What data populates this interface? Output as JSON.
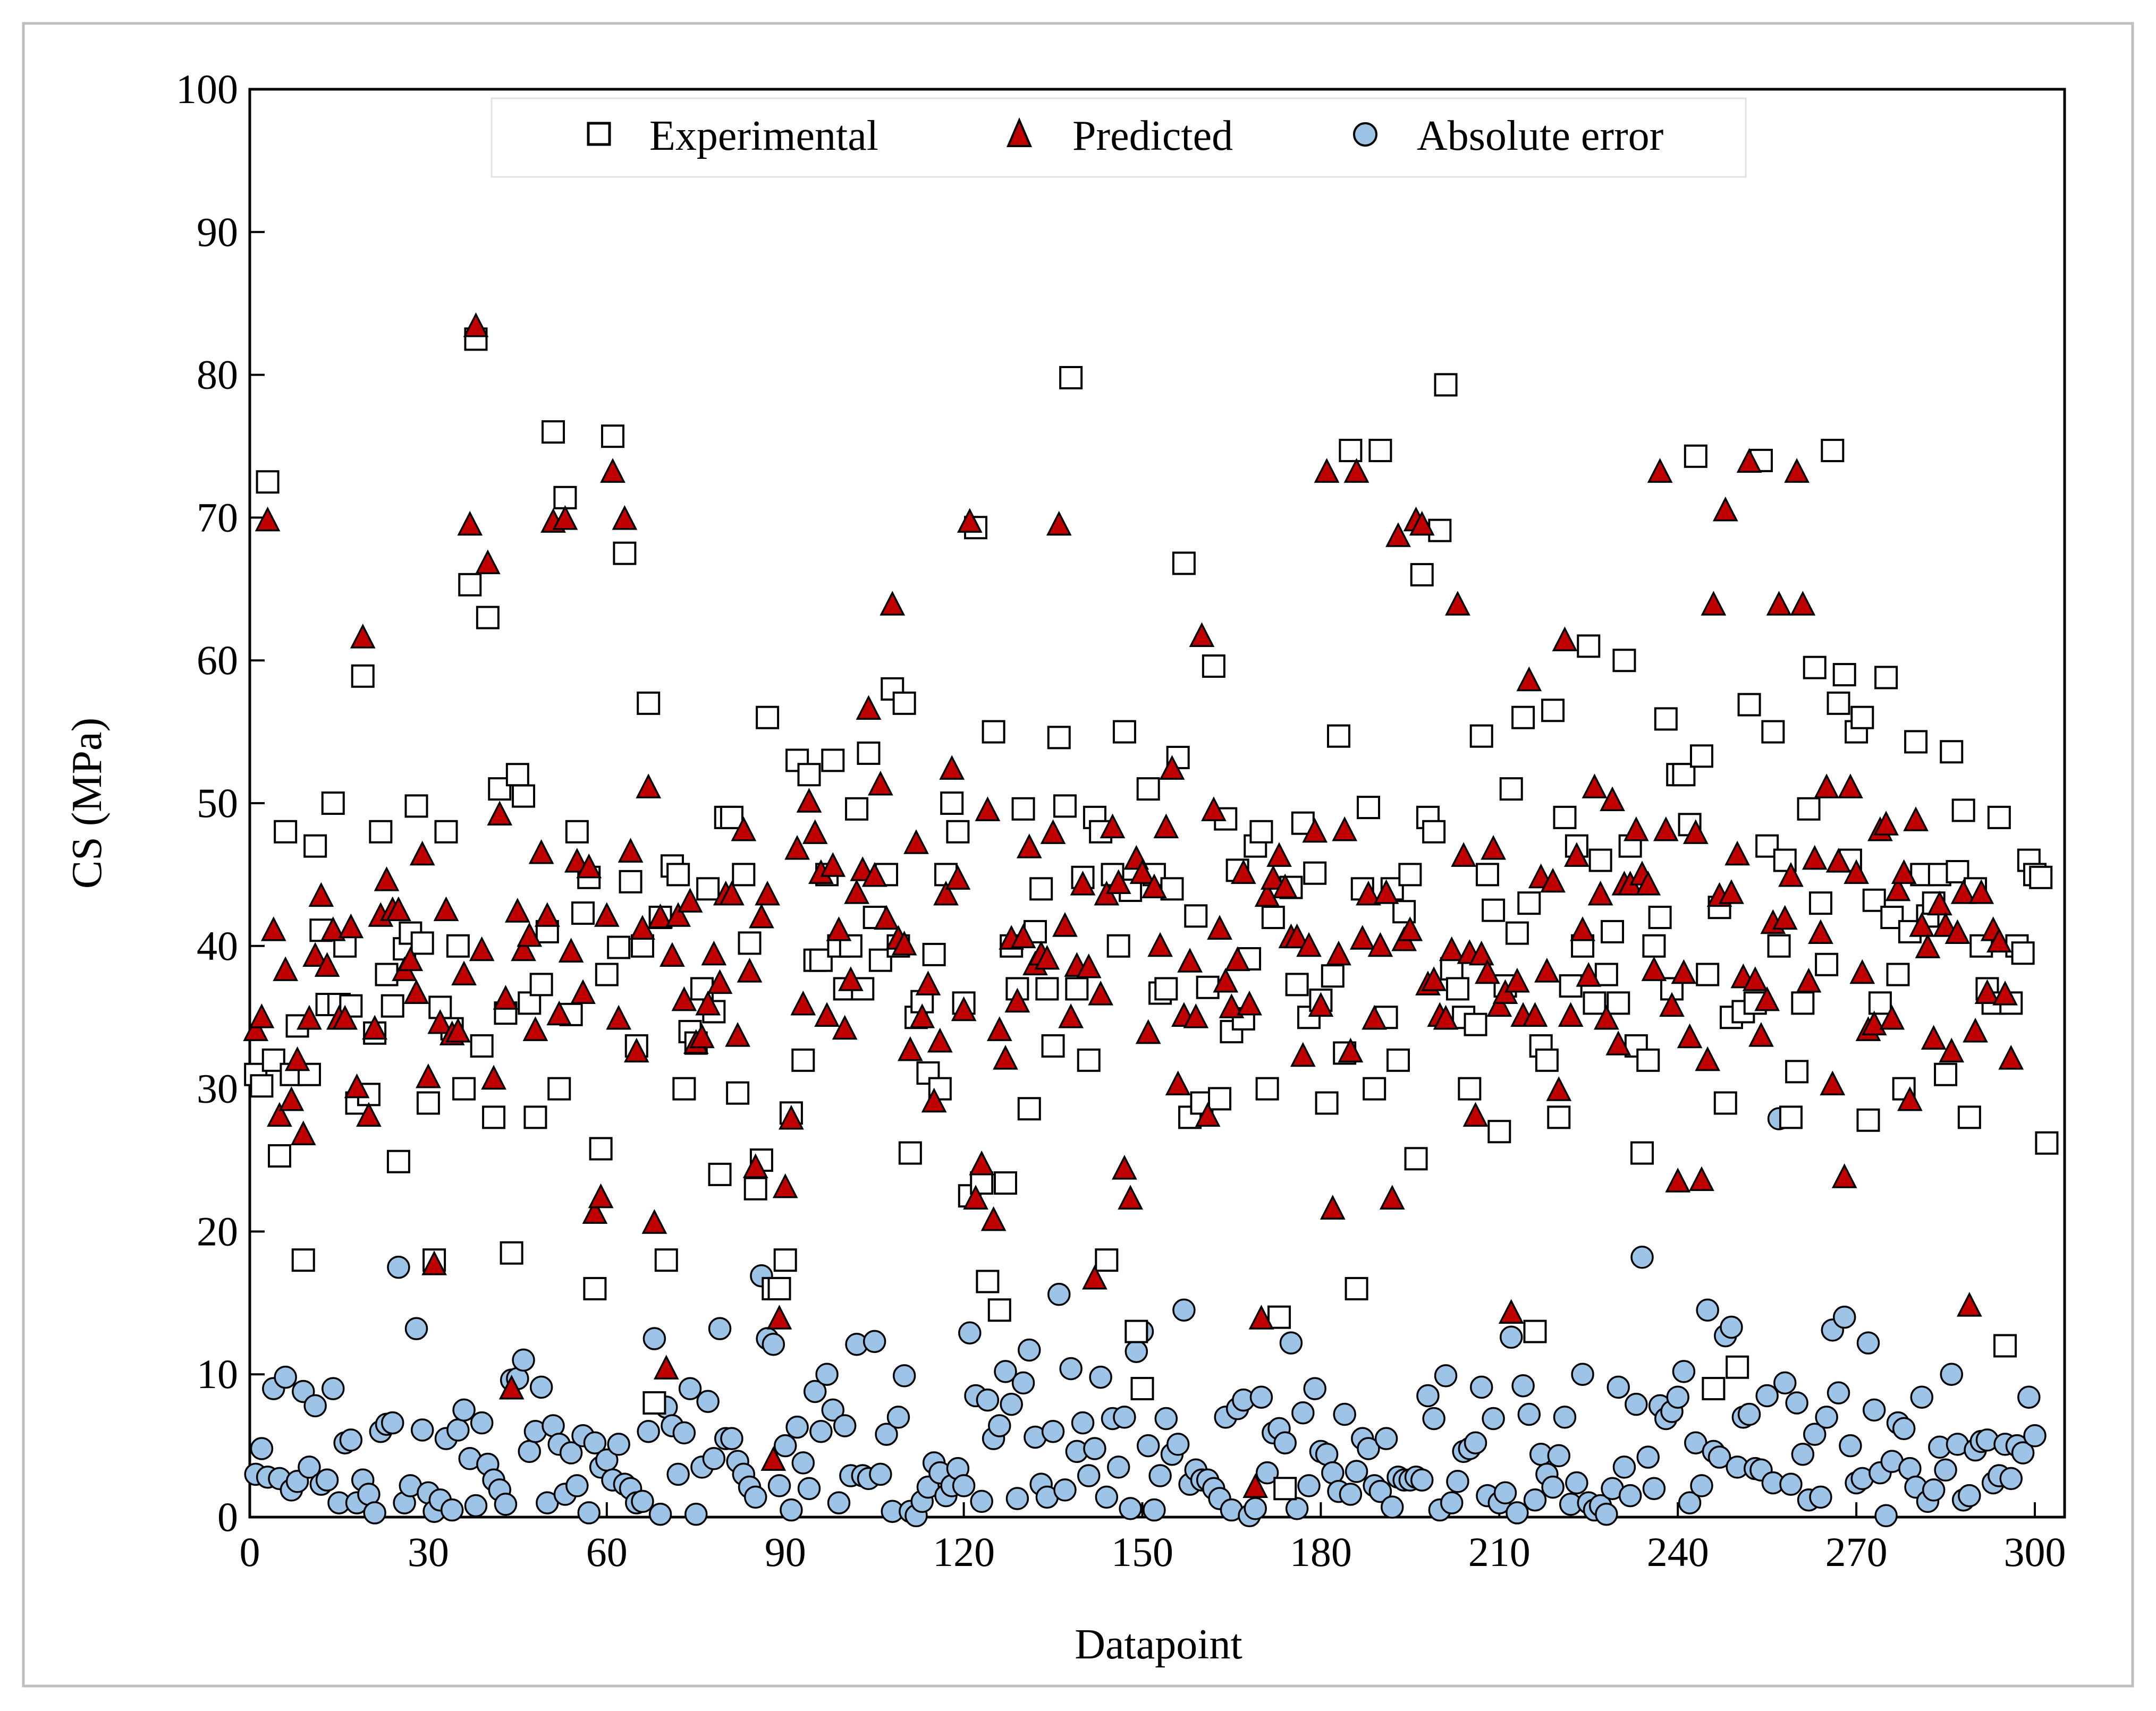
{
  "chart_data": {
    "type": "scatter",
    "title": "",
    "xlabel": "Datapoint",
    "ylabel": "CS (MPa)",
    "xlim": [
      0,
      305
    ],
    "ylim": [
      0,
      100
    ],
    "x_ticks": [
      "0",
      "30",
      "60",
      "90",
      "120",
      "150",
      "180",
      "210",
      "240",
      "270",
      "300"
    ],
    "y_ticks": [
      "0",
      "10",
      "20",
      "30",
      "40",
      "50",
      "60",
      "70",
      "80",
      "90",
      "100"
    ],
    "grid": false,
    "legend": {
      "position": "top-center",
      "entries": [
        "Experimental",
        "Predicted",
        "Absolute error"
      ]
    },
    "series": [
      {
        "name": "Experimental",
        "marker": "open-square",
        "color": "#ffffff",
        "edge_color": "#000000",
        "values": [
          31.0,
          30.2,
          72.5,
          32.0,
          25.3,
          48.0,
          31.0,
          34.4,
          18.0,
          31.0,
          47.0,
          41.1,
          35.9,
          50.0,
          35.9,
          40.0,
          35.8,
          29.0,
          58.9,
          29.6,
          33.9,
          48.0,
          38.0,
          35.8,
          24.9,
          39.8,
          40.9,
          49.8,
          40.2,
          29.0,
          18.0,
          35.7,
          48.0,
          34.2,
          40.0,
          30.0,
          65.3,
          82.5,
          33.0,
          63.0,
          28.0,
          51.0,
          35.3,
          18.5,
          52.0,
          50.5,
          36.0,
          28.0,
          37.3,
          41.0,
          76.0,
          30.0,
          71.4,
          35.2,
          48.0,
          42.3,
          44.8,
          16.0,
          25.8,
          38.0,
          75.7,
          39.9,
          67.5,
          44.5,
          33.0,
          40.0,
          57.0,
          8.0,
          42.0,
          18.0,
          45.6,
          45.0,
          30.0,
          34.0,
          33.2,
          37.0,
          44.0,
          35.4,
          24.0,
          49.0,
          49.0,
          29.7,
          45.0,
          40.2,
          23.0,
          25.0,
          56.0,
          16.0,
          16.0,
          18.0,
          28.3,
          53.0,
          32.0,
          52.0,
          39.0,
          39.0,
          45.0,
          53.0,
          40.0,
          37.0,
          40.0,
          49.6,
          37.0,
          53.5,
          42.0,
          39.0,
          45.0,
          58.0,
          40.0,
          57.0,
          25.5,
          35.0,
          36.1,
          31.1,
          39.4,
          30.0,
          45.0,
          50.0,
          48.0,
          36.0,
          22.5,
          69.3,
          23.4,
          16.5,
          55.0,
          14.5,
          23.4,
          40.0,
          37.0,
          49.6,
          28.6,
          41.0,
          44.0,
          37.0,
          33.0,
          54.6,
          49.8,
          79.8,
          37.0,
          44.8,
          32.0,
          49.0,
          48.0,
          18.0,
          45.0,
          40.0,
          55.0,
          43.9,
          13.0,
          9.0,
          51.0,
          45.0,
          36.7,
          37.0,
          44.0,
          53.2,
          66.8,
          28.0,
          42.1,
          29.0,
          37.1,
          59.6,
          29.3,
          48.9,
          34.0,
          45.3,
          34.9,
          39.1,
          47.0,
          48.0,
          30.0,
          42.0,
          14.0,
          2.0,
          44.1,
          37.3,
          48.6,
          35.0,
          45.1,
          36.2,
          29.0,
          37.9,
          54.7,
          32.5,
          74.7,
          16.0,
          44.0,
          49.7,
          30.0,
          74.7,
          35.0,
          44.0,
          32.0,
          42.4,
          45.0,
          25.1,
          66.0,
          49.0,
          48.0,
          69.1,
          79.3,
          38.4,
          37.0,
          35.0,
          30.0,
          34.5,
          54.7,
          45.0,
          42.5,
          27.0,
          37.2,
          51.0,
          40.9,
          56.0,
          43.0,
          13.0,
          33.0,
          32.0,
          56.5,
          28.0,
          49.0,
          37.2,
          47.0,
          40.0,
          61.0,
          36.0,
          46.0,
          38.0,
          41.0,
          36.0,
          60.0,
          47.0,
          33.0,
          25.5,
          32.0,
          40.0,
          42.0,
          55.9,
          37.0,
          52.0,
          52.0,
          48.5,
          74.3,
          53.3,
          38.0,
          9.0,
          42.7,
          29.0,
          35.0,
          10.5,
          35.4,
          56.9,
          36.0,
          74.0,
          47.0,
          55.0,
          40.0,
          46.0,
          28.0,
          31.2,
          36.0,
          49.6,
          59.5,
          43.0,
          38.7,
          74.7,
          57.0,
          59.0,
          46.0,
          55.0,
          56.0,
          27.8,
          43.2,
          36.0,
          58.8,
          42.0,
          38.0,
          30.0,
          41.0,
          54.3,
          45.0,
          42.1,
          43.0,
          45.0,
          31.0,
          53.6,
          45.2,
          49.5,
          28.0,
          44.0,
          40.0,
          37.0,
          36.0,
          49.0,
          12.0,
          36.0,
          40.0,
          39.5,
          46.0,
          45.0,
          44.8,
          26.2
        ]
      },
      {
        "name": "Predicted",
        "marker": "triangle",
        "color": "#c00000",
        "edge_color": "#000000",
        "values": [
          34.0,
          34.9,
          69.7,
          41.0,
          28.0,
          38.2,
          29.1,
          31.9,
          26.7,
          34.8,
          39.2,
          43.4,
          38.5,
          41.0,
          34.8,
          34.8,
          41.2,
          30.0,
          61.5,
          28.0,
          34.1,
          42.0,
          44.5,
          42.4,
          42.4,
          38.2,
          38.9,
          36.6,
          46.3,
          30.7,
          17.6,
          34.5,
          42.4,
          33.7,
          33.9,
          37.9,
          69.4,
          83.3,
          39.6,
          66.7,
          30.6,
          49.1,
          36.2,
          8.9,
          42.3,
          39.6,
          40.6,
          34.0,
          46.4,
          42.0,
          69.6,
          35.1,
          69.8,
          39.5,
          45.8,
          36.6,
          45.4,
          21.2,
          22.3,
          42.0,
          73.1,
          34.8,
          69.8,
          46.5,
          32.5,
          41.1,
          51.0,
          20.5,
          41.9,
          10.3,
          39.2,
          42.0,
          36.1,
          43.0,
          33.1,
          33.5,
          35.8,
          39.3,
          37.3,
          43.5,
          43.5,
          33.6,
          48.0,
          38.1,
          24.4,
          41.9,
          43.5,
          3.9,
          13.8,
          23.0,
          27.8,
          46.7,
          35.8,
          50.0,
          47.8,
          45.0,
          35.0,
          45.5,
          41.0,
          34.1,
          37.5,
          43.6,
          45.2,
          56.5,
          44.8,
          51.2,
          41.8,
          63.8,
          40.4,
          40.0,
          32.6,
          47.1,
          34.9,
          37.2,
          29.0,
          33.2,
          43.5,
          52.3,
          44.6,
          35.4,
          69.6,
          22.2,
          24.6,
          49.4,
          20.7,
          34.0,
          32.0,
          40.4,
          36.0,
          40.5,
          46.8,
          38.6,
          39.3,
          39.0,
          47.8,
          69.4,
          41.3,
          34.9,
          38.5,
          44.2,
          38.4,
          16.6,
          36.5,
          43.5,
          48.2,
          44.3,
          24.3,
          22.2,
          46.0,
          45.0,
          33.8,
          44.0,
          39.9,
          48.2,
          52.3,
          30.2,
          35.0,
          38.8,
          34.9,
          61.6,
          28.0,
          49.4,
          41.1,
          37.4,
          35.6,
          38.9,
          45.0,
          35.8,
          2.0,
          13.8,
          43.4,
          44.6,
          46.2,
          44.0,
          40.5,
          40.5,
          32.2,
          39.9,
          47.9,
          35.7,
          73.1,
          21.5,
          39.3,
          48.0,
          32.5,
          73.1,
          40.4,
          43.5,
          34.8,
          39.9,
          43.6,
          22.2,
          68.6,
          40.3,
          41.0,
          69.7,
          69.4,
          37.2,
          37.5,
          35.0,
          34.8,
          39.6,
          63.8,
          46.2,
          39.4,
          28.0,
          39.3,
          38.0,
          46.7,
          35.7,
          36.6,
          14.2,
          37.4,
          35.0,
          58.5,
          35.0,
          44.7,
          38.1,
          44.4,
          29.8,
          61.3,
          35.0,
          46.2,
          41.0,
          37.8,
          51.0,
          43.5,
          34.8,
          50.1,
          33.0,
          44.2,
          44.2,
          48.0,
          44.9,
          44.2,
          38.2,
          73.1,
          48.0,
          35.7,
          23.4,
          38.0,
          33.5,
          47.8,
          23.5,
          31.9,
          63.8,
          43.4,
          70.4,
          43.6,
          46.3,
          37.7,
          73.8,
          37.5,
          33.6,
          36.1,
          41.5,
          63.8,
          41.8,
          44.8,
          73.1,
          63.8,
          37.4,
          46.0,
          40.8,
          51.0,
          30.2,
          45.8,
          23.7,
          51.0,
          45.0,
          38.0,
          34.0,
          34.4,
          48.0,
          48.4,
          34.8,
          43.8,
          45.0,
          29.1,
          48.7,
          41.3,
          39.8,
          33.4,
          42.8,
          41.3,
          32.5,
          40.8,
          43.6,
          14.7,
          33.9,
          43.6,
          36.6,
          41.0,
          40.2,
          36.5,
          32.0
        ]
      },
      {
        "name": "Absolute error",
        "marker": "circle",
        "color": "#9dc3e6",
        "edge_color": "#000000",
        "values": [
          3.0,
          4.8,
          2.8,
          9.0,
          2.7,
          9.8,
          1.9,
          2.5,
          8.8,
          3.5,
          7.8,
          2.3,
          2.6,
          9.0,
          1.0,
          5.2,
          5.4,
          1.0,
          2.6,
          1.6,
          0.3,
          6.0,
          6.5,
          6.6,
          17.5,
          1.0,
          2.2,
          13.2,
          6.1,
          1.7,
          0.4,
          1.2,
          5.5,
          0.5,
          6.1,
          7.5,
          4.1,
          0.8,
          6.6,
          3.7,
          2.6,
          1.9,
          0.9,
          9.6,
          9.7,
          11.0,
          4.6,
          6.0,
          9.1,
          1.0,
          6.4,
          5.1,
          1.6,
          4.5,
          2.2,
          5.7,
          0.3,
          5.2,
          3.5,
          4.0,
          2.6,
          5.1,
          2.3,
          2.0,
          1.0,
          1.1,
          6.0,
          12.5,
          0.2,
          7.7,
          6.4,
          3.0,
          5.9,
          9.0,
          0.2,
          3.5,
          8.1,
          4.1,
          13.2,
          5.5,
          5.5,
          3.9,
          3.0,
          2.1,
          1.4,
          16.9,
          12.5,
          12.1,
          2.2,
          5.0,
          0.5,
          6.3,
          3.8,
          2.0,
          8.8,
          6.0,
          10.0,
          7.5,
          1.0,
          6.4,
          2.9,
          12.1,
          2.9,
          2.7,
          12.3,
          3.0,
          5.8,
          0.4,
          7.0,
          9.9,
          0.4,
          0.1,
          1.1,
          2.1,
          3.8,
          3.1,
          1.5,
          2.2,
          3.4,
          2.2,
          12.9,
          8.5,
          1.1,
          8.2,
          5.5,
          6.4,
          10.2,
          7.9,
          1.3,
          9.4,
          11.7,
          5.6,
          2.3,
          1.4,
          6.0,
          15.6,
          1.9,
          10.4,
          4.6,
          6.6,
          2.9,
          4.8,
          9.8,
          1.4,
          6.9,
          3.5,
          7.0,
          0.6,
          11.6,
          13.0,
          5.0,
          0.5,
          2.9,
          6.9,
          4.4,
          5.1,
          14.5,
          2.3,
          3.3,
          2.6,
          2.6,
          2.0,
          1.3,
          7.0,
          0.5,
          7.6,
          8.2,
          0.1,
          0.6,
          8.4,
          3.1,
          5.9,
          6.2,
          5.2,
          12.2,
          0.6,
          7.3,
          2.2,
          9.0,
          4.6,
          4.4,
          3.1,
          1.8,
          7.2,
          1.6,
          3.2,
          5.5,
          4.8,
          2.2,
          1.8,
          5.5,
          0.7,
          2.8,
          2.6,
          2.6,
          2.8,
          2.6,
          8.5,
          6.9,
          0.5,
          9.9,
          1.0,
          2.5,
          4.6,
          4.8,
          5.2,
          9.1,
          1.5,
          6.9,
          1.0,
          1.7,
          12.6,
          0.3,
          9.2,
          7.2,
          1.2,
          4.4,
          3.0,
          2.1,
          4.3,
          7.0,
          0.9,
          2.4,
          10.0,
          1.0,
          0.5,
          0.8,
          0.2,
          2.0,
          9.1,
          3.5,
          1.5,
          7.9,
          18.2,
          4.2,
          2.0,
          7.8,
          6.9,
          7.4,
          8.4,
          10.2,
          1.0,
          5.2,
          2.2,
          14.5,
          4.6,
          4.2,
          12.7,
          13.3,
          3.5,
          7.0,
          7.2,
          3.4,
          3.3,
          8.5,
          2.4,
          27.9,
          9.4,
          2.3,
          8.0,
          4.4,
          1.2,
          5.8,
          1.4,
          7.0,
          13.1,
          8.7,
          14.0,
          5.0,
          2.4,
          2.7,
          12.2,
          7.5,
          3.1,
          0.1,
          3.9,
          6.6,
          6.2,
          3.4,
          2.1,
          8.4,
          1.1,
          1.9,
          4.9,
          3.3,
          10.0,
          5.1,
          1.2,
          1.5,
          4.7,
          5.3,
          5.4,
          2.4,
          2.9,
          5.1,
          2.7,
          5.0,
          4.5,
          8.4,
          5.7
        ]
      }
    ]
  }
}
